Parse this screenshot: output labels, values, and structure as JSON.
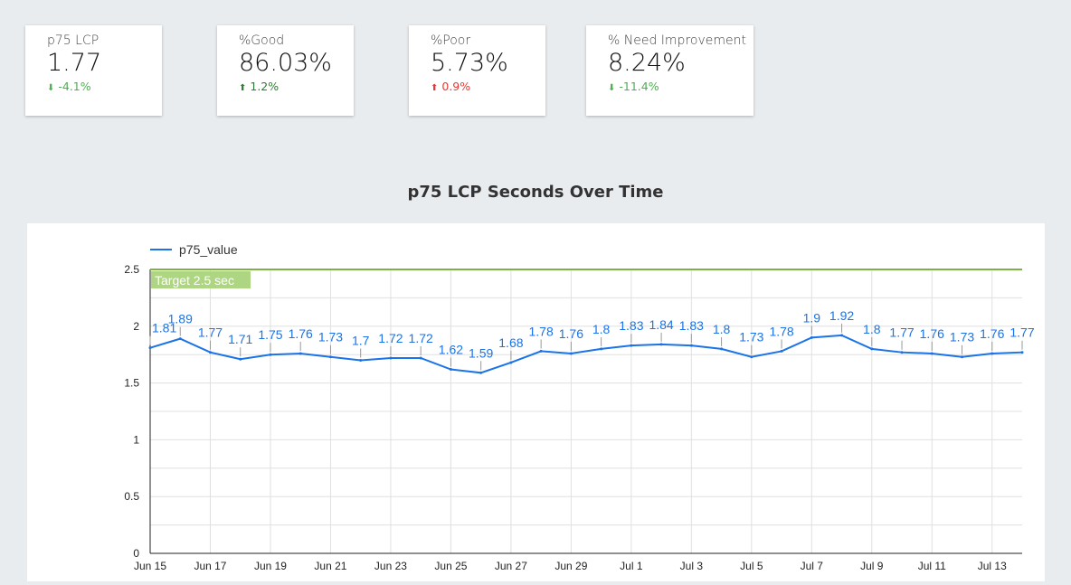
{
  "kpis": [
    {
      "label": "p75 LCP",
      "value": "1.77",
      "delta": "-4.1%",
      "direction": "down",
      "color": "#4caf50"
    },
    {
      "label": "%Good",
      "value": "86.03%",
      "delta": "1.2%",
      "direction": "up",
      "color": "#2e7d32"
    },
    {
      "label": "%Poor",
      "value": "5.73%",
      "delta": "0.9%",
      "direction": "up",
      "color": "#e53935"
    },
    {
      "label": "% Need Improvement",
      "value": "8.24%",
      "delta": "-11.4%",
      "direction": "down",
      "color": "#4caf50"
    }
  ],
  "chart_data": {
    "type": "line",
    "title": "p75 LCP Seconds Over Time",
    "x": [
      "Jun 15",
      "Jun 16",
      "Jun 17",
      "Jun 18",
      "Jun 19",
      "Jun 20",
      "Jun 21",
      "Jun 22",
      "Jun 23",
      "Jun 24",
      "Jun 25",
      "Jun 26",
      "Jun 27",
      "Jun 28",
      "Jun 29",
      "Jun 30",
      "Jul 1",
      "Jul 2",
      "Jul 3",
      "Jul 4",
      "Jul 5",
      "Jul 6",
      "Jul 7",
      "Jul 8",
      "Jul 9",
      "Jul 10",
      "Jul 11",
      "Jul 12",
      "Jul 13",
      "Jul 14"
    ],
    "xticks": [
      "Jun 15",
      "Jun 17",
      "Jun 19",
      "Jun 21",
      "Jun 23",
      "Jun 25",
      "Jun 27",
      "Jun 29",
      "Jul 1",
      "Jul 3",
      "Jul 5",
      "Jul 7",
      "Jul 9",
      "Jul 11",
      "Jul 13"
    ],
    "series": [
      {
        "name": "p75_value",
        "color": "#1a73e8",
        "values": [
          1.81,
          1.89,
          1.77,
          1.71,
          1.75,
          1.76,
          1.73,
          1.7,
          1.72,
          1.72,
          1.62,
          1.59,
          1.68,
          1.78,
          1.76,
          1.8,
          1.83,
          1.84,
          1.83,
          1.8,
          1.73,
          1.78,
          1.9,
          1.92,
          1.8,
          1.77,
          1.76,
          1.73,
          1.76,
          1.77
        ]
      }
    ],
    "ylim": [
      0,
      2.5
    ],
    "yticks": [
      "0",
      "0.5",
      "1",
      "1.5",
      "2",
      "2.5"
    ],
    "reference_line": {
      "value": 2.5,
      "label": "Target 2.5 sec",
      "color": "#7cb342"
    },
    "legend": "top-left",
    "grid": true
  }
}
